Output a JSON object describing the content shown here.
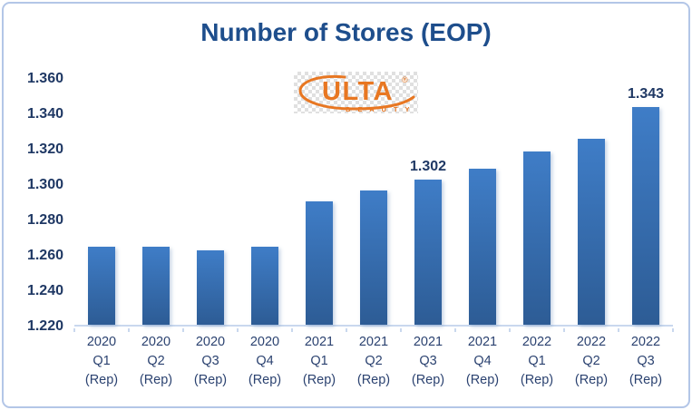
{
  "colors": {
    "background": "#ffffff",
    "frame_border": "#b3c6e7",
    "title_blue": "#1e4e8c",
    "tick_navy": "#1f3864",
    "xlabel_navy": "#2b4270",
    "axis_line": "#c9d8ee",
    "logo_orange": "#e87722"
  },
  "logo": {
    "text": "ULTA",
    "registered": "®",
    "subtext": "B E A U T Y",
    "color": "#e87722"
  },
  "chart_data": {
    "type": "bar",
    "title": "Number of Stores (EOP)",
    "categories": [
      [
        "2020",
        "Q1",
        "(Rep)"
      ],
      [
        "2020",
        "Q2",
        "(Rep)"
      ],
      [
        "2020",
        "Q3",
        "(Rep)"
      ],
      [
        "2020",
        "Q4",
        "(Rep)"
      ],
      [
        "2021",
        "Q1",
        "(Rep)"
      ],
      [
        "2021",
        "Q2",
        "(Rep)"
      ],
      [
        "2021",
        "Q3",
        "(Rep)"
      ],
      [
        "2021",
        "Q4",
        "(Rep)"
      ],
      [
        "2022",
        "Q1",
        "(Rep)"
      ],
      [
        "2022",
        "Q2",
        "(Rep)"
      ],
      [
        "2022",
        "Q3",
        "(Rep)"
      ]
    ],
    "values": [
      1264,
      1264,
      1262,
      1264,
      1290,
      1296,
      1302,
      1308,
      1318,
      1325,
      1343
    ],
    "data_labels": [
      null,
      null,
      null,
      null,
      null,
      null,
      "1.302",
      null,
      null,
      null,
      "1.343"
    ],
    "value_format": "thousands shown with dot separator (1.343 = 1,343 stores)",
    "y_ticks": [
      "1.360",
      "1.340",
      "1.320",
      "1.300",
      "1.280",
      "1.260",
      "1.240",
      "1.220"
    ],
    "ylim": [
      1220,
      1360
    ],
    "grid": false,
    "legend": null,
    "bar_colors": {
      "top": "#3f7dc7",
      "bottom": "#2d5c95"
    }
  }
}
